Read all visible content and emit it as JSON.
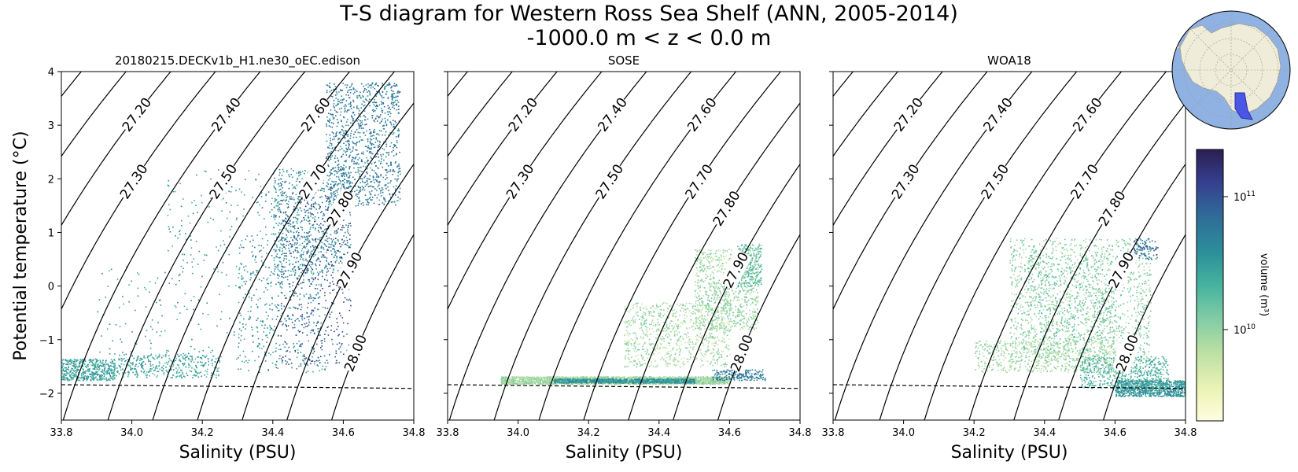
{
  "title_line1": "T-S diagram for Western Ross Sea Shelf (ANN, 2005-2014)",
  "title_line2": "-1000.0 m < z < 0.0 m",
  "chart_data": {
    "type": "scatter",
    "xlabel": "Salinity (PSU)",
    "ylabel": "Potential temperature (°C)",
    "xlim": [
      33.8,
      34.8
    ],
    "ylim": [
      -2.5,
      4
    ],
    "xticks": [
      "33.8",
      "34.0",
      "34.2",
      "34.4",
      "34.6",
      "34.8"
    ],
    "yticks": [
      "4",
      "3",
      "2",
      "1",
      "0",
      "−1",
      "−2"
    ],
    "density_contours": [
      "27.00",
      "27.10",
      "27.20",
      "27.30",
      "27.40",
      "27.50",
      "27.60",
      "27.70",
      "27.80",
      "27.90",
      "28.00"
    ],
    "freezing_line": {
      "style": "dashed",
      "y_at_33_8": -1.84,
      "y_at_34_8": -1.91
    },
    "panels": [
      {
        "title": "20180215.DECKv1b_H1.ne30_oEC.edison",
        "clusters": [
          {
            "s": [
              33.8,
              33.95
            ],
            "t": [
              -1.75,
              -1.35
            ],
            "n": 500,
            "vol": 0.55
          },
          {
            "s": [
              33.95,
              34.25
            ],
            "t": [
              -1.7,
              -1.25
            ],
            "n": 350,
            "vol": 0.55
          },
          {
            "s": [
              33.9,
              34.4
            ],
            "t": [
              -1.6,
              0.4
            ],
            "n": 180,
            "vol": 0.6
          },
          {
            "s": [
              34.1,
              34.5
            ],
            "t": [
              0.0,
              2.2
            ],
            "n": 220,
            "vol": 0.6
          },
          {
            "s": [
              34.3,
              34.55
            ],
            "t": [
              -1.6,
              1.0
            ],
            "n": 400,
            "vol": 0.62
          },
          {
            "s": [
              34.4,
              34.62
            ],
            "t": [
              0.2,
              2.2
            ],
            "n": 700,
            "vol": 0.65
          },
          {
            "s": [
              34.55,
              34.76
            ],
            "t": [
              1.5,
              3.8
            ],
            "n": 1100,
            "vol": 0.7
          },
          {
            "s": [
              34.42,
              34.62
            ],
            "t": [
              -1.45,
              1.8
            ],
            "n": 450,
            "vol": 0.85
          }
        ]
      },
      {
        "title": "SOSE",
        "clusters": [
          {
            "s": [
              33.95,
              34.6
            ],
            "t": [
              -1.82,
              -1.68
            ],
            "n": 2600,
            "vol": 0.3
          },
          {
            "s": [
              34.1,
              34.5
            ],
            "t": [
              -1.8,
              -1.72
            ],
            "n": 900,
            "vol": 0.6
          },
          {
            "s": [
              34.3,
              34.6
            ],
            "t": [
              -1.5,
              -0.3
            ],
            "n": 800,
            "vol": 0.3
          },
          {
            "s": [
              34.5,
              34.68
            ],
            "t": [
              -0.8,
              0.7
            ],
            "n": 900,
            "vol": 0.32
          },
          {
            "s": [
              34.62,
              34.69
            ],
            "t": [
              0.0,
              0.8
            ],
            "n": 250,
            "vol": 0.45
          },
          {
            "s": [
              34.55,
              34.7
            ],
            "t": [
              -1.75,
              -1.55
            ],
            "n": 200,
            "vol": 0.7
          }
        ]
      },
      {
        "title": "WOA18",
        "clusters": [
          {
            "s": [
              34.3,
              34.7
            ],
            "t": [
              -1.4,
              0.9
            ],
            "n": 1500,
            "vol": 0.35
          },
          {
            "s": [
              34.2,
              34.6
            ],
            "t": [
              -1.6,
              -1.0
            ],
            "n": 700,
            "vol": 0.3
          },
          {
            "s": [
              34.6,
              34.8
            ],
            "t": [
              -2.05,
              -1.75
            ],
            "n": 900,
            "vol": 0.6
          },
          {
            "s": [
              34.5,
              34.75
            ],
            "t": [
              -1.9,
              -1.3
            ],
            "n": 600,
            "vol": 0.5
          },
          {
            "s": [
              34.65,
              34.72
            ],
            "t": [
              0.5,
              0.9
            ],
            "n": 100,
            "vol": 0.75
          },
          {
            "s": [
              34.35,
              34.6
            ],
            "t": [
              -1.0,
              0.6
            ],
            "n": 400,
            "vol": 0.4
          }
        ]
      }
    ],
    "colorbar": {
      "label": "volume (m³)",
      "tick_10_11": "10",
      "tick_10_11_exp": "11",
      "tick_10_10": "10",
      "tick_10_10_exp": "10",
      "colors": [
        "#fffee0",
        "#eaf3b5",
        "#bde0a3",
        "#7fcba6",
        "#46b39e",
        "#2d8f9a",
        "#2f6d99",
        "#363f8f",
        "#2b1f52"
      ]
    },
    "inset_map": {
      "ocean_color": "#8fb2e3",
      "land_color": "#efecd9",
      "region_color": "#4a57e6"
    }
  }
}
